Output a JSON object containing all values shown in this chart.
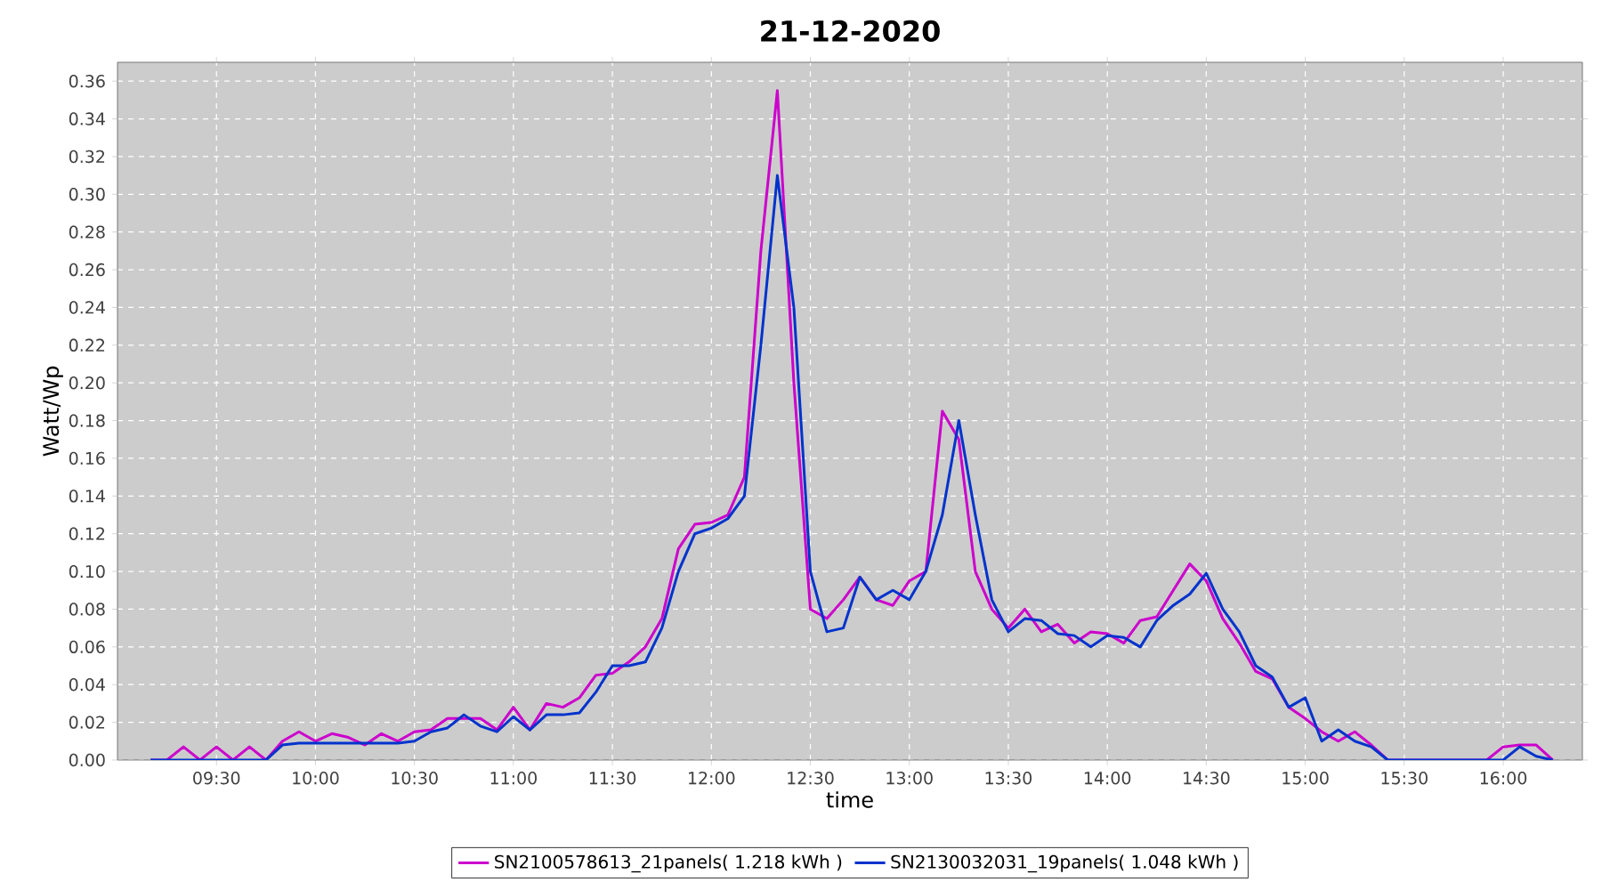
{
  "chart_data": {
    "type": "line",
    "title": "21-12-2020",
    "xlabel": "time",
    "ylabel": "Watt/Wp",
    "x": [
      9.1667,
      9.25,
      9.3333,
      9.4167,
      9.5,
      9.5833,
      9.6667,
      9.75,
      9.8333,
      9.9167,
      10.0,
      10.0833,
      10.1667,
      10.25,
      10.3333,
      10.4167,
      10.5,
      10.5833,
      10.6667,
      10.75,
      10.8333,
      10.9167,
      11.0,
      11.0833,
      11.1667,
      11.25,
      11.3333,
      11.4167,
      11.5,
      11.5833,
      11.6667,
      11.75,
      11.8333,
      11.9167,
      12.0,
      12.0833,
      12.1667,
      12.25,
      12.3333,
      12.4167,
      12.5,
      12.5833,
      12.6667,
      12.75,
      12.8333,
      12.9167,
      13.0,
      13.0833,
      13.1667,
      13.25,
      13.3333,
      13.4167,
      13.5,
      13.5833,
      13.6667,
      13.75,
      13.8333,
      13.9167,
      14.0,
      14.0833,
      14.1667,
      14.25,
      14.3333,
      14.4167,
      14.5,
      14.5833,
      14.6667,
      14.75,
      14.8333,
      14.9167,
      15.0,
      15.0833,
      15.1667,
      15.25,
      15.3333,
      15.4167,
      15.5,
      15.5833,
      15.6667,
      15.75,
      15.8333,
      15.9167,
      16.0,
      16.0833,
      16.1667,
      16.25
    ],
    "series": [
      {
        "name": "SN2100578613_21panels( 1.218 kWh )",
        "color": "#cc00cc",
        "values": [
          0,
          0,
          0.007,
          0,
          0.007,
          0,
          0.007,
          0,
          0.01,
          0.015,
          0.01,
          0.014,
          0.012,
          0.008,
          0.014,
          0.01,
          0.015,
          0.016,
          0.022,
          0.022,
          0.022,
          0.016,
          0.028,
          0.016,
          0.03,
          0.028,
          0.033,
          0.045,
          0.046,
          0.052,
          0.06,
          0.075,
          0.112,
          0.125,
          0.126,
          0.13,
          0.15,
          0.27,
          0.355,
          0.2,
          0.08,
          0.075,
          0.085,
          0.097,
          0.085,
          0.082,
          0.095,
          0.1,
          0.185,
          0.17,
          0.1,
          0.08,
          0.07,
          0.08,
          0.068,
          0.072,
          0.062,
          0.068,
          0.067,
          0.062,
          0.074,
          0.076,
          0.09,
          0.104,
          0.095,
          0.075,
          0.062,
          0.047,
          0.043,
          0.028,
          0.022,
          0.015,
          0.01,
          0.015,
          0.008,
          0,
          0,
          0,
          0,
          0,
          0,
          0,
          0.007,
          0.008,
          0.008,
          0
        ]
      },
      {
        "name": "SN2130032031_19panels( 1.048 kWh )",
        "color": "#0033cc",
        "values": [
          0,
          0,
          0,
          0,
          0,
          0,
          0,
          0,
          0.008,
          0.009,
          0.009,
          0.009,
          0.009,
          0.009,
          0.009,
          0.009,
          0.01,
          0.015,
          0.017,
          0.024,
          0.018,
          0.015,
          0.023,
          0.016,
          0.024,
          0.024,
          0.025,
          0.036,
          0.05,
          0.05,
          0.052,
          0.07,
          0.1,
          0.12,
          0.123,
          0.128,
          0.14,
          0.22,
          0.31,
          0.24,
          0.1,
          0.068,
          0.07,
          0.097,
          0.085,
          0.09,
          0.085,
          0.1,
          0.13,
          0.18,
          0.13,
          0.085,
          0.068,
          0.075,
          0.074,
          0.067,
          0.066,
          0.06,
          0.066,
          0.065,
          0.06,
          0.074,
          0.082,
          0.088,
          0.099,
          0.08,
          0.068,
          0.05,
          0.044,
          0.028,
          0.033,
          0.01,
          0.016,
          0.01,
          0.007,
          0,
          0,
          0,
          0,
          0,
          0,
          0,
          0,
          0.007,
          0.002,
          0
        ]
      }
    ],
    "xlim": [
      9.0,
      16.4
    ],
    "ylim": [
      0,
      0.37
    ],
    "xticks": [
      {
        "value": 9.5,
        "label": "09:30"
      },
      {
        "value": 10.0,
        "label": "10:00"
      },
      {
        "value": 10.5,
        "label": "10:30"
      },
      {
        "value": 11.0,
        "label": "11:00"
      },
      {
        "value": 11.5,
        "label": "11:30"
      },
      {
        "value": 12.0,
        "label": "12:00"
      },
      {
        "value": 12.5,
        "label": "12:30"
      },
      {
        "value": 13.0,
        "label": "13:00"
      },
      {
        "value": 13.5,
        "label": "13:30"
      },
      {
        "value": 14.0,
        "label": "14:00"
      },
      {
        "value": 14.5,
        "label": "14:30"
      },
      {
        "value": 15.0,
        "label": "15:00"
      },
      {
        "value": 15.5,
        "label": "15:30"
      },
      {
        "value": 16.0,
        "label": "16:00"
      }
    ],
    "yticks": [
      {
        "value": 0,
        "label": "0.00"
      },
      {
        "value": 0.02,
        "label": "0.02"
      },
      {
        "value": 0.04,
        "label": "0.04"
      },
      {
        "value": 0.06,
        "label": "0.06"
      },
      {
        "value": 0.08,
        "label": "0.08"
      },
      {
        "value": 0.1,
        "label": "0.10"
      },
      {
        "value": 0.12,
        "label": "0.12"
      },
      {
        "value": 0.14,
        "label": "0.14"
      },
      {
        "value": 0.16,
        "label": "0.16"
      },
      {
        "value": 0.18,
        "label": "0.18"
      },
      {
        "value": 0.2,
        "label": "0.20"
      },
      {
        "value": 0.22,
        "label": "0.22"
      },
      {
        "value": 0.24,
        "label": "0.24"
      },
      {
        "value": 0.26,
        "label": "0.26"
      },
      {
        "value": 0.28,
        "label": "0.28"
      },
      {
        "value": 0.3,
        "label": "0.30"
      },
      {
        "value": 0.32,
        "label": "0.32"
      },
      {
        "value": 0.34,
        "label": "0.34"
      },
      {
        "value": 0.36,
        "label": "0.36"
      }
    ],
    "grid": true,
    "legend": "bottom"
  }
}
